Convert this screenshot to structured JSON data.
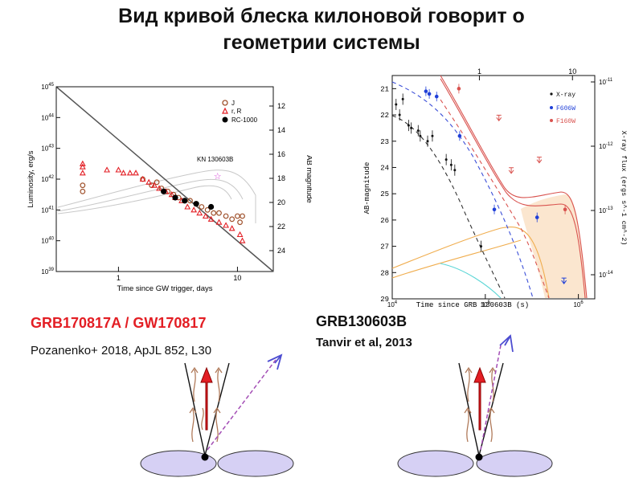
{
  "slide": {
    "title_line1": "Вид кривой блеска килоновой говорит о",
    "title_line2": "геометрии системы"
  },
  "left": {
    "grb_label": "GRB170817A / GW170817",
    "reference": "Pozanenko+ 2018, ApJL 852, L30"
  },
  "right": {
    "grb_label": "GRB130603B",
    "reference": "Tanvir et al, 2013"
  },
  "chart_data": [
    {
      "type": "scatter",
      "title": "",
      "xlabel": "Time since GW trigger, days",
      "ylabel": "Luminosity, erg/s",
      "ylabel_right": "AB magnitude",
      "xscale": "log",
      "yscale": "log",
      "xlim": [
        0.3,
        20
      ],
      "ylim_exp": [
        39,
        45
      ],
      "x_ticks": [
        "1",
        "10"
      ],
      "y_ticks": [
        "10^39",
        "10^40",
        "10^41",
        "10^42",
        "10^43",
        "10^44",
        "10^45"
      ],
      "y_ticks_right": [
        "12",
        "14",
        "16",
        "18",
        "20",
        "22",
        "24"
      ],
      "legend": [
        "J",
        "r, R",
        "RC-1000"
      ],
      "annotation": "KN 130603B",
      "series": [
        {
          "name": "J",
          "points": [
            [
              0.5,
              41.6
            ],
            [
              0.5,
              41.8
            ],
            [
              1.6,
              42.0
            ],
            [
              1.9,
              41.8
            ],
            [
              2.1,
              41.9
            ],
            [
              2.3,
              41.7
            ],
            [
              2.6,
              41.6
            ],
            [
              2.9,
              41.5
            ],
            [
              3.2,
              41.4
            ],
            [
              3.6,
              41.3
            ],
            [
              4.0,
              41.3
            ],
            [
              4.5,
              41.2
            ],
            [
              5.0,
              41.1
            ],
            [
              5.6,
              41.0
            ],
            [
              6.3,
              40.9
            ],
            [
              7.0,
              40.9
            ],
            [
              8.0,
              40.8
            ],
            [
              9.0,
              40.7
            ],
            [
              10.0,
              40.8
            ],
            [
              10.5,
              40.6
            ],
            [
              11.0,
              40.8
            ]
          ]
        },
        {
          "name": "r, R",
          "points": [
            [
              0.5,
              42.2
            ],
            [
              0.5,
              42.4
            ],
            [
              0.5,
              42.5
            ],
            [
              0.8,
              42.3
            ],
            [
              1.0,
              42.3
            ],
            [
              1.1,
              42.2
            ],
            [
              1.25,
              42.2
            ],
            [
              1.4,
              42.2
            ],
            [
              1.6,
              42.0
            ],
            [
              1.8,
              41.9
            ],
            [
              2.0,
              41.8
            ],
            [
              2.2,
              41.7
            ],
            [
              2.5,
              41.6
            ],
            [
              2.8,
              41.5
            ],
            [
              3.0,
              41.4
            ],
            [
              3.4,
              41.3
            ],
            [
              3.8,
              41.1
            ],
            [
              4.3,
              41.0
            ],
            [
              4.8,
              40.9
            ],
            [
              5.4,
              40.8
            ],
            [
              6.0,
              40.7
            ],
            [
              7.0,
              40.6
            ],
            [
              8.0,
              40.5
            ],
            [
              9.0,
              40.4
            ],
            [
              10.5,
              40.2
            ],
            [
              11.0,
              40.0
            ]
          ]
        },
        {
          "name": "RC-1000",
          "points": [
            [
              2.4,
              41.6
            ],
            [
              3.0,
              41.4
            ],
            [
              3.6,
              41.3
            ],
            [
              4.5,
              41.2
            ],
            [
              6.0,
              41.1
            ]
          ]
        },
        {
          "name": "KN 130603B",
          "points": [
            [
              6.8,
              42.1
            ]
          ]
        }
      ]
    },
    {
      "type": "scatter",
      "title": "",
      "xlabel": "Time since GRB 130603B (s)",
      "ylabel": "AB-magnitude",
      "ylabel_right": "X-ray flux (ergs s^-1 cm^-2)",
      "xscale": "log",
      "xlim": [
        10000,
        1500000
      ],
      "ylim": [
        29,
        20.5
      ],
      "x_ticks": [
        "10^4",
        "10^5",
        "10^6"
      ],
      "x_ticks_top": [
        "1",
        "10"
      ],
      "y_ticks": [
        "21",
        "22",
        "23",
        "24",
        "25",
        "26",
        "27",
        "28",
        "29"
      ],
      "y_ticks_right": [
        "10^-11",
        "10^-12",
        "10^-13",
        "10^-14"
      ],
      "legend": [
        "X-ray",
        "F606W",
        "F160W"
      ],
      "series": [
        {
          "name": "X-ray",
          "points": [
            [
              11000,
              21.6
            ],
            [
              12000,
              22.0
            ],
            [
              13000,
              21.4
            ],
            [
              15000,
              22.4
            ],
            [
              16000,
              22.5
            ],
            [
              19000,
              22.6
            ],
            [
              20000,
              22.8
            ],
            [
              24000,
              23.0
            ],
            [
              27000,
              22.8
            ],
            [
              38000,
              23.7
            ],
            [
              43000,
              23.9
            ],
            [
              47000,
              24.1
            ],
            [
              90000,
              27.0
            ]
          ]
        },
        {
          "name": "F606W",
          "points": [
            [
              23000,
              21.1
            ],
            [
              25000,
              21.2
            ],
            [
              30000,
              21.3
            ],
            [
              53000,
              22.8
            ],
            [
              125000,
              25.6
            ],
            [
              360000,
              25.9
            ],
            [
              700000,
              28.3
            ]
          ]
        },
        {
          "name": "F160W",
          "points": [
            [
              52000,
              21.0
            ],
            [
              140000,
              22.1
            ],
            [
              190000,
              24.1
            ],
            [
              380000,
              23.7
            ],
            [
              720000,
              25.6
            ]
          ]
        }
      ]
    }
  ]
}
